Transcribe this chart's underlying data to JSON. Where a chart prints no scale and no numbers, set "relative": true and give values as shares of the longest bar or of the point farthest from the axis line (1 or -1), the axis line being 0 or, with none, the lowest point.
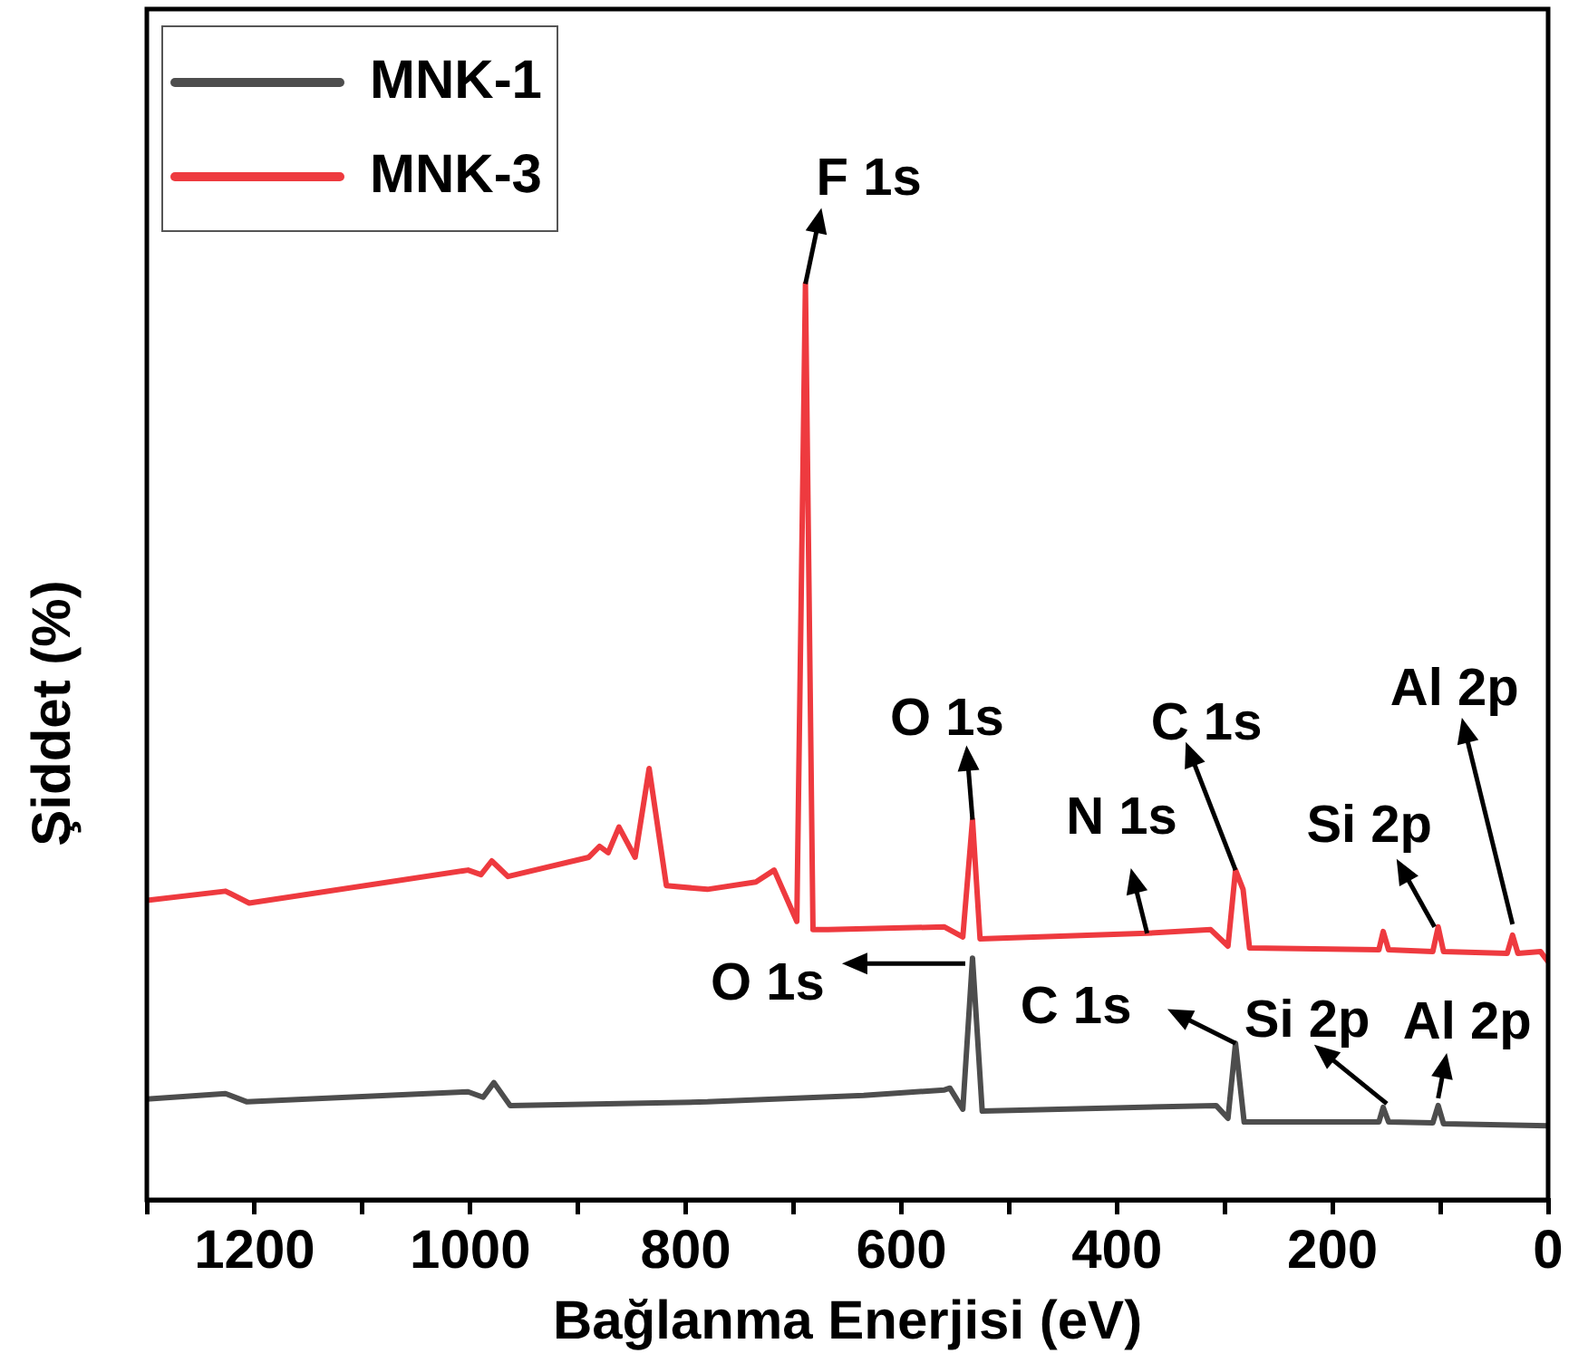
{
  "chart_data": {
    "type": "line",
    "xlabel": "Bağlanma Enerjisi (eV)",
    "ylabel": "Şiddet (%)",
    "relative": true,
    "legend": "top left",
    "xlim": [
      1300,
      0
    ],
    "xticks": [
      {
        "value": 1300,
        "label": null
      },
      1200,
      {
        "value": 1100,
        "label": null
      },
      1000,
      {
        "value": 900,
        "label": null
      },
      800,
      {
        "value": 700,
        "label": null
      },
      600,
      {
        "value": 500,
        "label": null
      },
      400,
      {
        "value": 300,
        "label": null
      },
      200,
      {
        "value": 100,
        "label": null
      },
      0
    ],
    "series": [
      {
        "name": "MNK-1",
        "color": "#4d4d4d",
        "x": [
          1300,
          1227,
          1207,
          1002,
          988,
          978,
          963,
          780,
          635,
          560,
          555,
          543,
          534,
          525,
          308,
          297,
          290,
          282,
          157,
          153,
          148,
          107,
          102,
          97,
          0
        ],
        "values": [
          0.11,
          0.116,
          0.107,
          0.118,
          0.112,
          0.128,
          0.103,
          0.107,
          0.114,
          0.12,
          0.122,
          0.099,
          0.264,
          0.097,
          0.103,
          0.089,
          0.171,
          0.085,
          0.085,
          0.101,
          0.085,
          0.084,
          0.103,
          0.083,
          0.081
        ]
      },
      {
        "name": "MNK-3",
        "color": "#ee3a3f",
        "x": [
          1300,
          1227,
          1205,
          1002,
          990,
          980,
          965,
          890,
          880,
          872,
          862,
          847,
          834,
          818,
          780,
          735,
          718,
          697,
          689,
          682,
          668,
          560,
          543,
          534,
          527,
          372,
          313,
          297,
          290,
          283,
          277,
          157,
          153,
          148,
          107,
          102,
          97,
          38,
          33,
          28,
          7,
          0
        ],
        "values": [
          0.327,
          0.337,
          0.324,
          0.36,
          0.355,
          0.37,
          0.353,
          0.374,
          0.386,
          0.379,
          0.407,
          0.374,
          0.471,
          0.343,
          0.339,
          0.347,
          0.36,
          0.304,
          1.0,
          0.295,
          0.295,
          0.298,
          0.287,
          0.415,
          0.285,
          0.291,
          0.295,
          0.277,
          0.36,
          0.339,
          0.275,
          0.273,
          0.293,
          0.273,
          0.271,
          0.298,
          0.271,
          0.269,
          0.289,
          0.269,
          0.271,
          0.26
        ]
      }
    ],
    "annotations": [
      {
        "text": "F 1s",
        "x": 689,
        "y": 1.0
      },
      {
        "text": "O 1s",
        "x": 534,
        "y": 0.415
      },
      {
        "text": "N 1s",
        "x": 372,
        "y": 0.291
      },
      {
        "text": "C 1s",
        "x": 290,
        "y": 0.36
      },
      {
        "text": "Si 2p",
        "x": 102,
        "y": 0.298
      },
      {
        "text": "Al 2p",
        "x": 33,
        "y": 0.289
      },
      {
        "text": "O 1s",
        "x": 534,
        "y": 0.264
      },
      {
        "text": "C 1s",
        "x": 290,
        "y": 0.171
      },
      {
        "text": "Si 2p",
        "x": 153,
        "y": 0.101
      },
      {
        "text": "Al 2p",
        "x": 102,
        "y": 0.103
      }
    ]
  }
}
